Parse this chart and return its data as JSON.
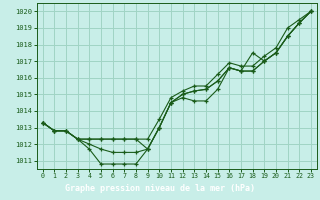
{
  "title": "Graphe pression niveau de la mer (hPa)",
  "bg_color": "#c8eee8",
  "grid_color": "#a0d4c4",
  "line_color": "#1a5c1a",
  "label_bg": "#2d6e2d",
  "label_fg": "#ffffff",
  "xlim": [
    -0.5,
    23.5
  ],
  "ylim": [
    1010.5,
    1020.5
  ],
  "yticks": [
    1011,
    1012,
    1013,
    1014,
    1015,
    1016,
    1017,
    1018,
    1019,
    1020
  ],
  "xticks": [
    0,
    1,
    2,
    3,
    4,
    5,
    6,
    7,
    8,
    9,
    10,
    11,
    12,
    13,
    14,
    15,
    16,
    17,
    18,
    19,
    20,
    21,
    22,
    23
  ],
  "series": [
    [
      1013.3,
      1012.8,
      1012.8,
      1012.3,
      1011.7,
      1010.8,
      1010.8,
      1010.8,
      1010.8,
      1011.7,
      1013.0,
      1014.5,
      1014.8,
      1014.6,
      1014.6,
      1015.3,
      1016.6,
      1016.4,
      1017.5,
      1017.0,
      1017.5,
      1018.5,
      1019.3,
      1020.0
    ],
    [
      1013.3,
      1012.8,
      1012.8,
      1012.3,
      1012.0,
      1011.7,
      1011.5,
      1011.5,
      1011.5,
      1011.7,
      1013.0,
      1014.5,
      1015.0,
      1015.2,
      1015.3,
      1015.8,
      1016.6,
      1016.4,
      1016.4,
      1017.0,
      1017.5,
      1018.5,
      1019.3,
      1020.0
    ],
    [
      1013.3,
      1012.8,
      1012.8,
      1012.3,
      1012.3,
      1012.3,
      1012.3,
      1012.3,
      1012.3,
      1011.7,
      1013.0,
      1014.5,
      1015.0,
      1015.2,
      1015.3,
      1015.8,
      1016.6,
      1016.4,
      1016.4,
      1017.0,
      1017.5,
      1018.5,
      1019.3,
      1020.0
    ],
    [
      1013.3,
      1012.8,
      1012.8,
      1012.3,
      1012.3,
      1012.3,
      1012.3,
      1012.3,
      1012.3,
      1012.3,
      1013.5,
      1014.8,
      1015.2,
      1015.5,
      1015.5,
      1016.2,
      1016.9,
      1016.7,
      1016.7,
      1017.3,
      1017.8,
      1019.0,
      1019.5,
      1020.0
    ]
  ]
}
